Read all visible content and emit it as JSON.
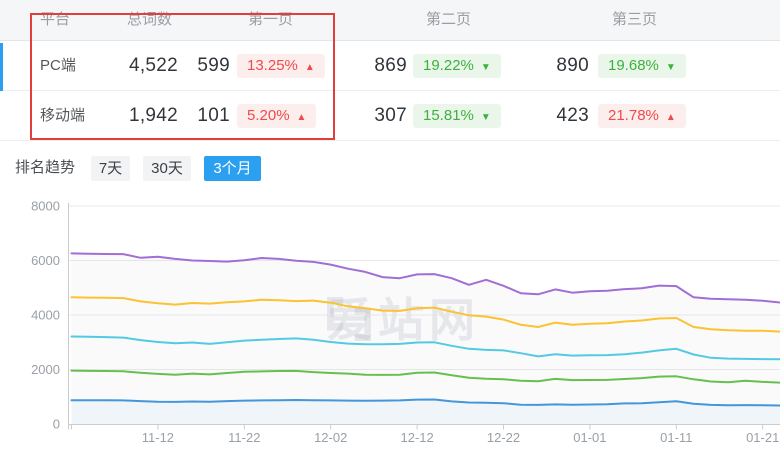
{
  "table": {
    "headers": {
      "platform": "平台",
      "total": "总词数",
      "page1": "第一页",
      "page2": "第二页",
      "page3": "第三页"
    },
    "rows": [
      {
        "platform": "PC端",
        "total": "4,522",
        "page1": {
          "count": "599",
          "pct": "13.25%",
          "dir": "up"
        },
        "page2": {
          "count": "869",
          "pct": "19.22%",
          "dir": "down"
        },
        "page3": {
          "count": "890",
          "pct": "19.68%",
          "dir": "down"
        }
      },
      {
        "platform": "移动端",
        "total": "1,942",
        "page1": {
          "count": "101",
          "pct": "5.20%",
          "dir": "up"
        },
        "page2": {
          "count": "307",
          "pct": "15.81%",
          "dir": "down"
        },
        "page3": {
          "count": "423",
          "pct": "21.78%",
          "dir": "up"
        }
      }
    ]
  },
  "trend": {
    "label": "排名趋势",
    "tabs": [
      {
        "label": "7天",
        "active": false
      },
      {
        "label": "30天",
        "active": false
      },
      {
        "label": "3个月",
        "active": true
      }
    ]
  },
  "watermark": {
    "text": "爱站网"
  },
  "colors": {
    "accent_blue": "#2b9ff0",
    "up_red": "#f04a4a",
    "down_green": "#3cb13c",
    "highlight_border": "#e23e3e",
    "axis_text": "#9aa0a6",
    "gridline": "#e9eaec"
  },
  "chart_data": {
    "type": "line",
    "title": "排名趋势 (3个月)",
    "x_start_date": "11-02",
    "x_end_date": "01-23",
    "x_sample_interval_days": 2,
    "x_tick_days": [
      10,
      20,
      30,
      40,
      50,
      60,
      70,
      80
    ],
    "x_tick_labels": [
      "11-12",
      "11-22",
      "12-02",
      "12-12",
      "12-22",
      "01-01",
      "01-11",
      "01-21"
    ],
    "y_tick_labels": [
      "0",
      "2000",
      "4000",
      "6000",
      "8000"
    ],
    "ylim": [
      0,
      8000
    ],
    "grid": true,
    "legend": "none",
    "series": [
      {
        "name": "line-purple",
        "color": "#a06ed5",
        "values": [
          6260,
          6250,
          6240,
          6235,
          6100,
          6140,
          6060,
          6000,
          5980,
          5960,
          6010,
          6090,
          6060,
          5990,
          5950,
          5850,
          5700,
          5580,
          5390,
          5350,
          5490,
          5500,
          5350,
          5110,
          5290,
          5070,
          4800,
          4760,
          4940,
          4820,
          4870,
          4890,
          4950,
          4980,
          5080,
          5060,
          4650,
          4600,
          4580,
          4560,
          4520,
          4460
        ]
      },
      {
        "name": "line-yellow",
        "color": "#fbc231",
        "values": [
          4650,
          4640,
          4630,
          4620,
          4500,
          4430,
          4380,
          4440,
          4420,
          4470,
          4500,
          4560,
          4540,
          4510,
          4530,
          4450,
          4320,
          4250,
          4160,
          4150,
          4250,
          4270,
          4120,
          3990,
          3940,
          3830,
          3640,
          3560,
          3720,
          3640,
          3680,
          3700,
          3760,
          3800,
          3870,
          3890,
          3560,
          3480,
          3440,
          3420,
          3420,
          3390
        ]
      },
      {
        "name": "line-cyan",
        "color": "#52cbe2",
        "values": [
          3210,
          3200,
          3190,
          3170,
          3080,
          3010,
          2960,
          2990,
          2940,
          3000,
          3060,
          3090,
          3120,
          3140,
          3090,
          3010,
          2950,
          2930,
          2930,
          2940,
          2990,
          3000,
          2870,
          2760,
          2720,
          2700,
          2600,
          2480,
          2560,
          2510,
          2520,
          2530,
          2560,
          2620,
          2700,
          2760,
          2550,
          2430,
          2400,
          2390,
          2380,
          2375
        ]
      },
      {
        "name": "line-green",
        "color": "#67bf4f",
        "values": [
          1960,
          1950,
          1945,
          1935,
          1880,
          1840,
          1810,
          1850,
          1820,
          1870,
          1915,
          1930,
          1945,
          1950,
          1905,
          1870,
          1850,
          1810,
          1800,
          1810,
          1880,
          1890,
          1790,
          1700,
          1660,
          1640,
          1590,
          1570,
          1655,
          1610,
          1615,
          1620,
          1650,
          1685,
          1740,
          1750,
          1640,
          1560,
          1530,
          1585,
          1545,
          1520
        ]
      },
      {
        "name": "line-blue",
        "color": "#4496db",
        "values": [
          875,
          870,
          868,
          865,
          840,
          820,
          810,
          825,
          815,
          840,
          858,
          865,
          875,
          880,
          870,
          865,
          860,
          855,
          860,
          865,
          895,
          900,
          830,
          790,
          780,
          765,
          710,
          700,
          720,
          710,
          715,
          725,
          755,
          760,
          800,
          835,
          740,
          700,
          690,
          695,
          685,
          680
        ]
      }
    ]
  }
}
